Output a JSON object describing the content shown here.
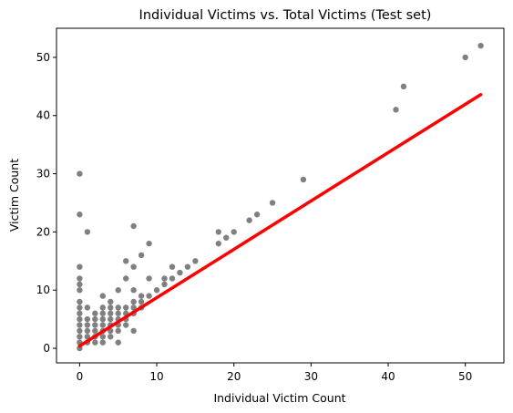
{
  "chart_data": {
    "type": "scatter",
    "title": "Individual Victims vs. Total Victims (Test set)",
    "xlabel": "Individual Victim Count",
    "ylabel": "Victim Count",
    "xlim": [
      -3,
      55
    ],
    "ylim": [
      -2.5,
      55
    ],
    "xticks": [
      0,
      10,
      20,
      30,
      40,
      50
    ],
    "yticks": [
      0,
      10,
      20,
      30,
      40,
      50
    ],
    "grid": false,
    "colors": {
      "points": "#808080",
      "fit_line": "#ff0000"
    },
    "points": [
      [
        0,
        0
      ],
      [
        0,
        1
      ],
      [
        0,
        2
      ],
      [
        0,
        3
      ],
      [
        0,
        4
      ],
      [
        0,
        5
      ],
      [
        0,
        6
      ],
      [
        0,
        7
      ],
      [
        0,
        8
      ],
      [
        0,
        10
      ],
      [
        0,
        11
      ],
      [
        0,
        12
      ],
      [
        0,
        14
      ],
      [
        0,
        23
      ],
      [
        0,
        30
      ],
      [
        1,
        1
      ],
      [
        1,
        2
      ],
      [
        1,
        3
      ],
      [
        1,
        4
      ],
      [
        1,
        5
      ],
      [
        1,
        7
      ],
      [
        1,
        20
      ],
      [
        2,
        1
      ],
      [
        2,
        2
      ],
      [
        2,
        3
      ],
      [
        2,
        4
      ],
      [
        2,
        5
      ],
      [
        2,
        6
      ],
      [
        3,
        1
      ],
      [
        3,
        2
      ],
      [
        3,
        3
      ],
      [
        3,
        4
      ],
      [
        3,
        5
      ],
      [
        3,
        6
      ],
      [
        3,
        7
      ],
      [
        3,
        9
      ],
      [
        4,
        2
      ],
      [
        4,
        3
      ],
      [
        4,
        4
      ],
      [
        4,
        5
      ],
      [
        4,
        6
      ],
      [
        4,
        7
      ],
      [
        4,
        8
      ],
      [
        5,
        1
      ],
      [
        5,
        3
      ],
      [
        5,
        4
      ],
      [
        5,
        5
      ],
      [
        5,
        6
      ],
      [
        5,
        7
      ],
      [
        5,
        10
      ],
      [
        6,
        4
      ],
      [
        6,
        5
      ],
      [
        6,
        6
      ],
      [
        6,
        7
      ],
      [
        6,
        12
      ],
      [
        6,
        15
      ],
      [
        7,
        3
      ],
      [
        7,
        6
      ],
      [
        7,
        7
      ],
      [
        7,
        8
      ],
      [
        7,
        10
      ],
      [
        7,
        14
      ],
      [
        7,
        21
      ],
      [
        8,
        7
      ],
      [
        8,
        8
      ],
      [
        8,
        9
      ],
      [
        8,
        16
      ],
      [
        9,
        9
      ],
      [
        9,
        12
      ],
      [
        9,
        18
      ],
      [
        10,
        10
      ],
      [
        11,
        11
      ],
      [
        11,
        12
      ],
      [
        12,
        12
      ],
      [
        12,
        14
      ],
      [
        13,
        13
      ],
      [
        14,
        14
      ],
      [
        15,
        15
      ],
      [
        18,
        18
      ],
      [
        18,
        20
      ],
      [
        19,
        19
      ],
      [
        20,
        20
      ],
      [
        22,
        22
      ],
      [
        23,
        23
      ],
      [
        25,
        25
      ],
      [
        29,
        29
      ],
      [
        41,
        41
      ],
      [
        42,
        45
      ],
      [
        50,
        50
      ],
      [
        52,
        52
      ]
    ],
    "fit_line": {
      "x": [
        0,
        52
      ],
      "y": [
        0.4,
        43.6
      ]
    }
  }
}
